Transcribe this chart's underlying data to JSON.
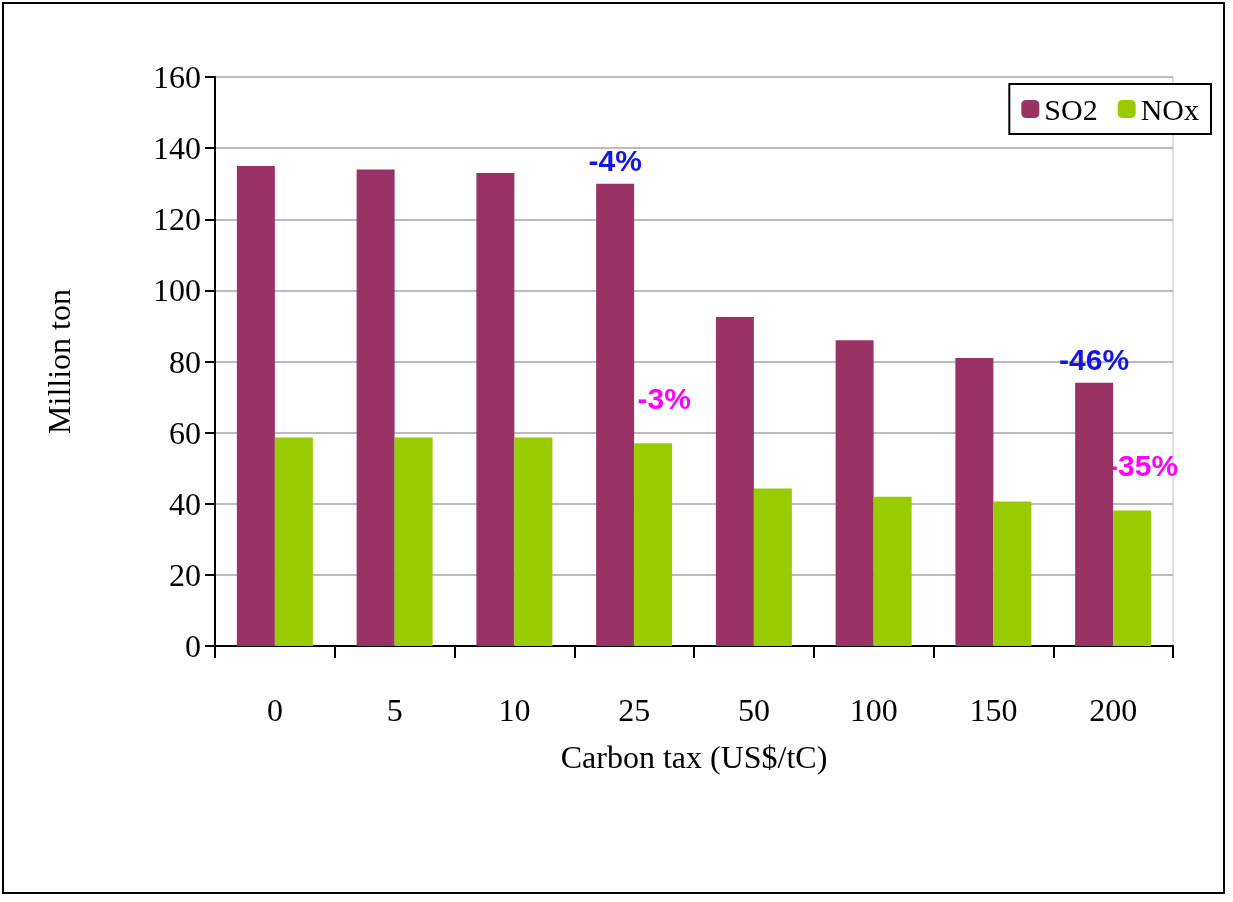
{
  "chart_data": {
    "type": "bar",
    "xlabel": "Carbon tax (US$/tC)",
    "ylabel": "Million ton",
    "categories": [
      "0",
      "5",
      "10",
      "25",
      "50",
      "100",
      "150",
      "200"
    ],
    "series": [
      {
        "name": "SO2",
        "color": "#993366",
        "values": [
          135,
          134,
          133,
          130,
          92.5,
          86,
          81,
          74
        ]
      },
      {
        "name": "NOx",
        "color": "#99cc00",
        "values": [
          58.6,
          58.6,
          58.6,
          57,
          44.3,
          42,
          40.6,
          38.1
        ]
      }
    ],
    "ylim": [
      0,
      160
    ],
    "yticks": [
      0,
      20,
      40,
      60,
      80,
      100,
      120,
      140,
      160
    ],
    "grid": "y",
    "legend": "top right",
    "annotations": [
      {
        "text": "-4%",
        "x": "25",
        "y": 130
      },
      {
        "text": "-3%",
        "x": "25",
        "y": 57
      },
      {
        "text": "-46%",
        "x": "200",
        "y": 74
      },
      {
        "text": "-35%",
        "x": "200",
        "y": 38.1
      }
    ]
  }
}
